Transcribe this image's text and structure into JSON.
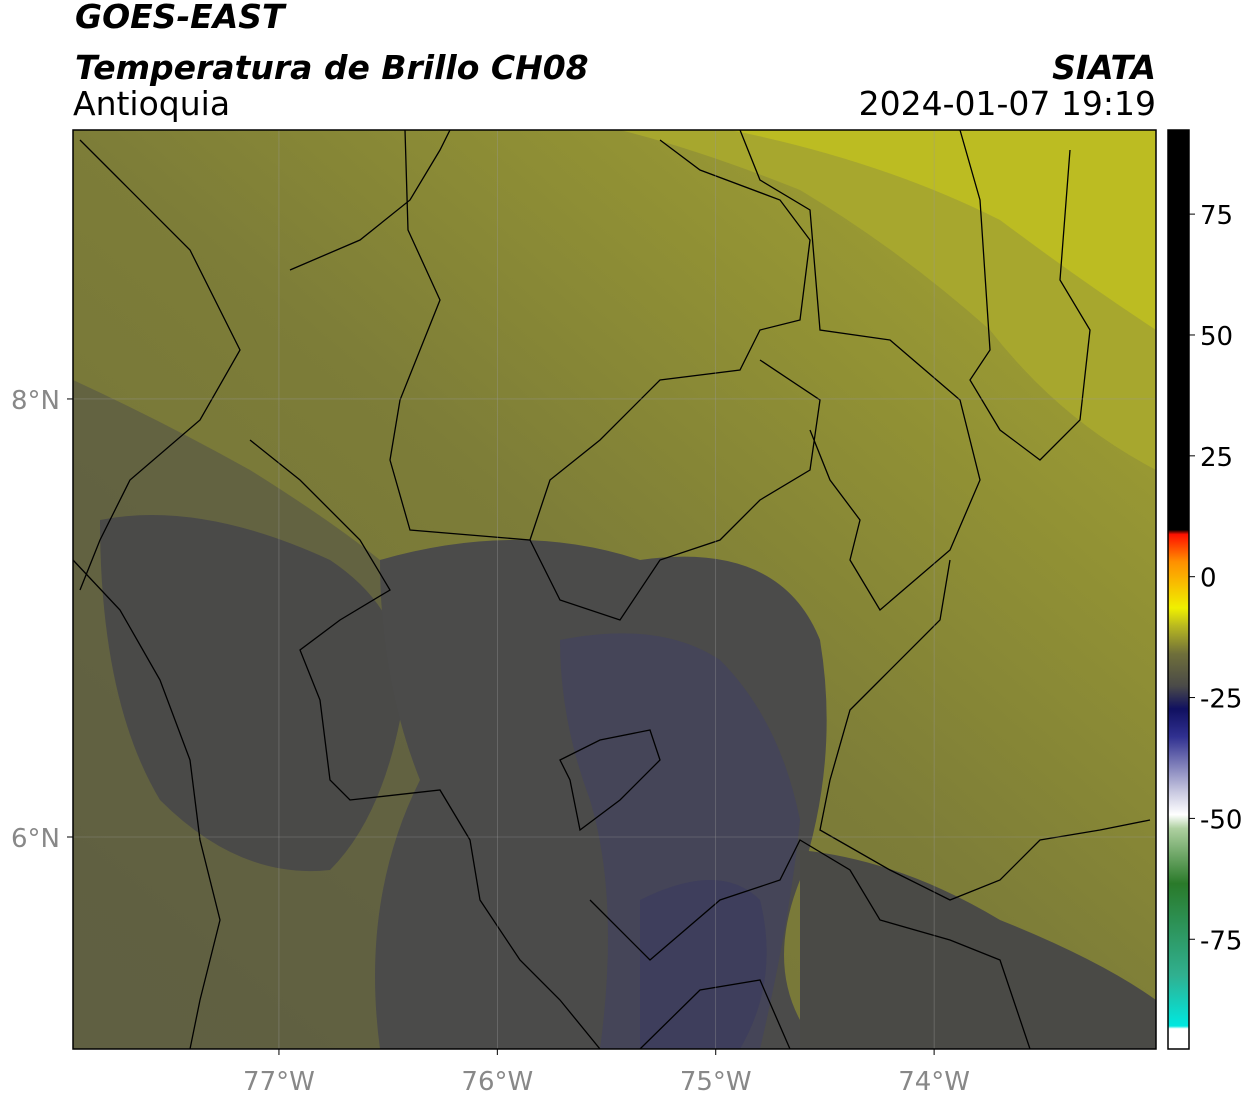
{
  "header": {
    "satellite": "GOES-EAST",
    "product": "Temperatura de Brillo CH08",
    "region": "Antioquia",
    "source": "SIATA",
    "datetime": "2024-01-07 19:19"
  },
  "map": {
    "lonlim": [
      -77.943,
      -72.984
    ],
    "latlim": [
      5.032,
      9.228
    ],
    "lon_ticks": [
      {
        "value": -77,
        "label": "77°W"
      },
      {
        "value": -76,
        "label": "76°W"
      },
      {
        "value": -75,
        "label": "75°W"
      },
      {
        "value": -74,
        "label": "74°W"
      }
    ],
    "lat_ticks": [
      {
        "value": 8,
        "label": "8°N"
      },
      {
        "value": 6,
        "label": "6°N"
      }
    ]
  },
  "colorbar": {
    "lim": [
      -97.7,
      92.4
    ],
    "ticks": [
      75,
      50,
      25,
      0,
      -25,
      -50,
      -75
    ]
  }
}
